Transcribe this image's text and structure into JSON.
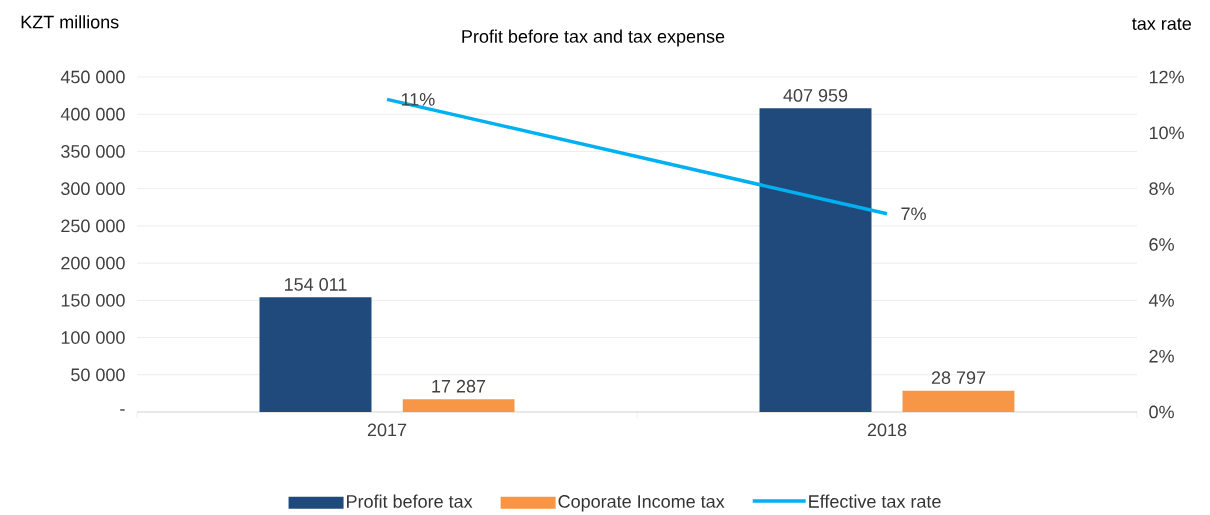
{
  "chart_data": {
    "type": "bar",
    "title": "Profit before tax and tax expense",
    "ylabel": "KZT millions",
    "y2label": "tax rate",
    "categories": [
      "2017",
      "2018"
    ],
    "series": [
      {
        "name": "Profit before tax",
        "color": "#204a7c",
        "values": [
          154011,
          407959
        ],
        "value_labels": [
          "154 011",
          "407 959"
        ]
      },
      {
        "name": "Coporate Income tax",
        "color": "#f79646",
        "values": [
          17287,
          28797
        ],
        "value_labels": [
          "17 287",
          "28 797"
        ]
      },
      {
        "name": "Effective tax rate",
        "type": "line",
        "axis": "y2",
        "color": "#00b0f0",
        "values": [
          11.2,
          7.1
        ],
        "value_labels": [
          "11%",
          "7%"
        ]
      }
    ],
    "ylim": [
      0,
      450000
    ],
    "yticks": [
      {
        "value": 0,
        "label": "-"
      },
      {
        "value": 50000,
        "label": "50 000"
      },
      {
        "value": 100000,
        "label": "100 000"
      },
      {
        "value": 150000,
        "label": "150 000"
      },
      {
        "value": 200000,
        "label": "200 000"
      },
      {
        "value": 250000,
        "label": "250 000"
      },
      {
        "value": 300000,
        "label": "300 000"
      },
      {
        "value": 350000,
        "label": "350 000"
      },
      {
        "value": 400000,
        "label": "400 000"
      },
      {
        "value": 450000,
        "label": "450 000"
      }
    ],
    "y2lim": [
      0,
      12
    ],
    "y2ticks": [
      {
        "value": 0,
        "label": "0%"
      },
      {
        "value": 2,
        "label": "2%"
      },
      {
        "value": 4,
        "label": "4%"
      },
      {
        "value": 6,
        "label": "6%"
      },
      {
        "value": 8,
        "label": "8%"
      },
      {
        "value": 10,
        "label": "10%"
      },
      {
        "value": 12,
        "label": "12%"
      }
    ],
    "grid": "y",
    "legend": "bottom"
  }
}
